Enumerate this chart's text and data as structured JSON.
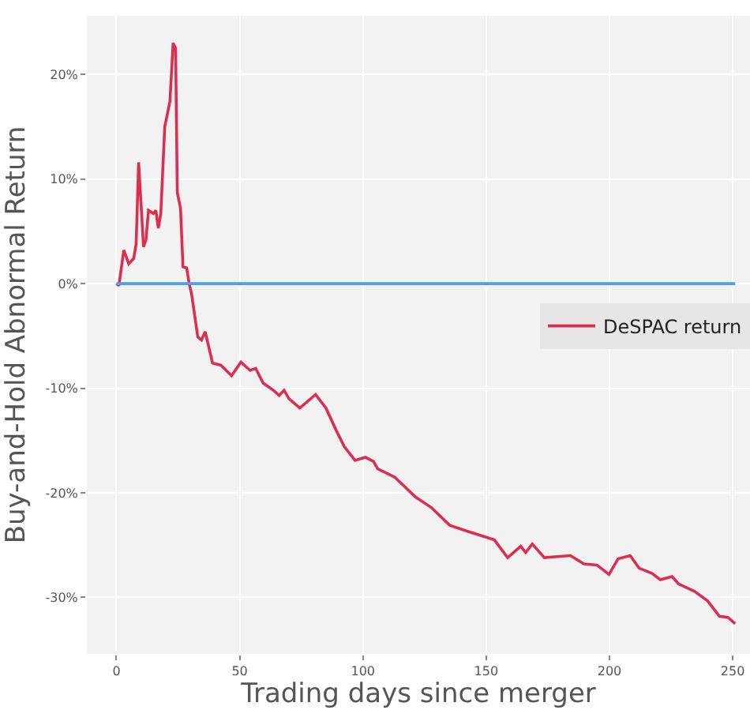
{
  "chart_data": {
    "type": "line",
    "xlabel": "Trading days since merger",
    "ylabel": "Buy-and-Hold Abnormal Return",
    "xlim": [
      -12,
      257
    ],
    "xticks": [
      0,
      50,
      100,
      150,
      200,
      250
    ],
    "ylim": [
      -35.4,
      25.6
    ],
    "yticks": [
      {
        "value": 20,
        "label": "20%"
      },
      {
        "value": 10,
        "label": "10%"
      },
      {
        "value": 0,
        "label": "0%"
      },
      {
        "value": -10,
        "label": "-10%"
      },
      {
        "value": -20,
        "label": "-20%"
      },
      {
        "value": -30,
        "label": "-30%"
      }
    ],
    "grid": true,
    "legend": "right",
    "marker": "none",
    "line_style": "solid",
    "series": [
      {
        "name": "DeSPAC return",
        "color": "#dc2f4f",
        "x": [
          0,
          1,
          3,
          5,
          7,
          8,
          9,
          11,
          12,
          13,
          15,
          16,
          17,
          18,
          19.6,
          21.7,
          23,
          24,
          24.7,
          26,
          27,
          28.5,
          29.5,
          30.5,
          33,
          34.5,
          36,
          39,
          42.4,
          46.7,
          50.5,
          54.2,
          56.5,
          59.5,
          63.7,
          66,
          68,
          70,
          74.4,
          80.8,
          85,
          89.3,
          92.5,
          96.8,
          101,
          104.3,
          106,
          112.9,
          121.3,
          127.7,
          135.2,
          142.7,
          153.3,
          158.7,
          164,
          166,
          168.7,
          173.6,
          178.9,
          184.2,
          189.6,
          194.9,
          199.8,
          203.5,
          208.4,
          212,
          217.3,
          220.6,
          225.4,
          228,
          234.4,
          239.7,
          244.6,
          248,
          251
        ],
        "values": [
          0,
          -0.2,
          3.2,
          1.9,
          2.4,
          3.8,
          11.6,
          3.5,
          4.2,
          7.0,
          6.7,
          7.0,
          5.3,
          6.7,
          15.0,
          17.4,
          23.0,
          22.5,
          8.7,
          7.2,
          1.6,
          1.5,
          0,
          -1,
          -5.1,
          -5.4,
          -4.6,
          -7.6,
          -7.8,
          -8.8,
          -7.5,
          -8.3,
          -8.1,
          -9.5,
          -10.2,
          -10.7,
          -10.2,
          -11.0,
          -11.9,
          -10.6,
          -11.9,
          -14.1,
          -15.6,
          -16.9,
          -16.6,
          -17.0,
          -17.7,
          -18.5,
          -20.4,
          -21.4,
          -23.1,
          -23.7,
          -24.5,
          -26.2,
          -25.1,
          -25.7,
          -24.9,
          -26.2,
          -26.1,
          -26.0,
          -26.8,
          -26.9,
          -27.8,
          -26.3,
          -26.0,
          -27.2,
          -27.7,
          -28.3,
          -28.0,
          -28.7,
          -29.4,
          -30.3,
          -31.8,
          -31.9,
          -32.5
        ]
      },
      {
        "color": "#4a9ff5",
        "x": [
          0,
          251
        ],
        "values": [
          0,
          0
        ]
      }
    ]
  }
}
